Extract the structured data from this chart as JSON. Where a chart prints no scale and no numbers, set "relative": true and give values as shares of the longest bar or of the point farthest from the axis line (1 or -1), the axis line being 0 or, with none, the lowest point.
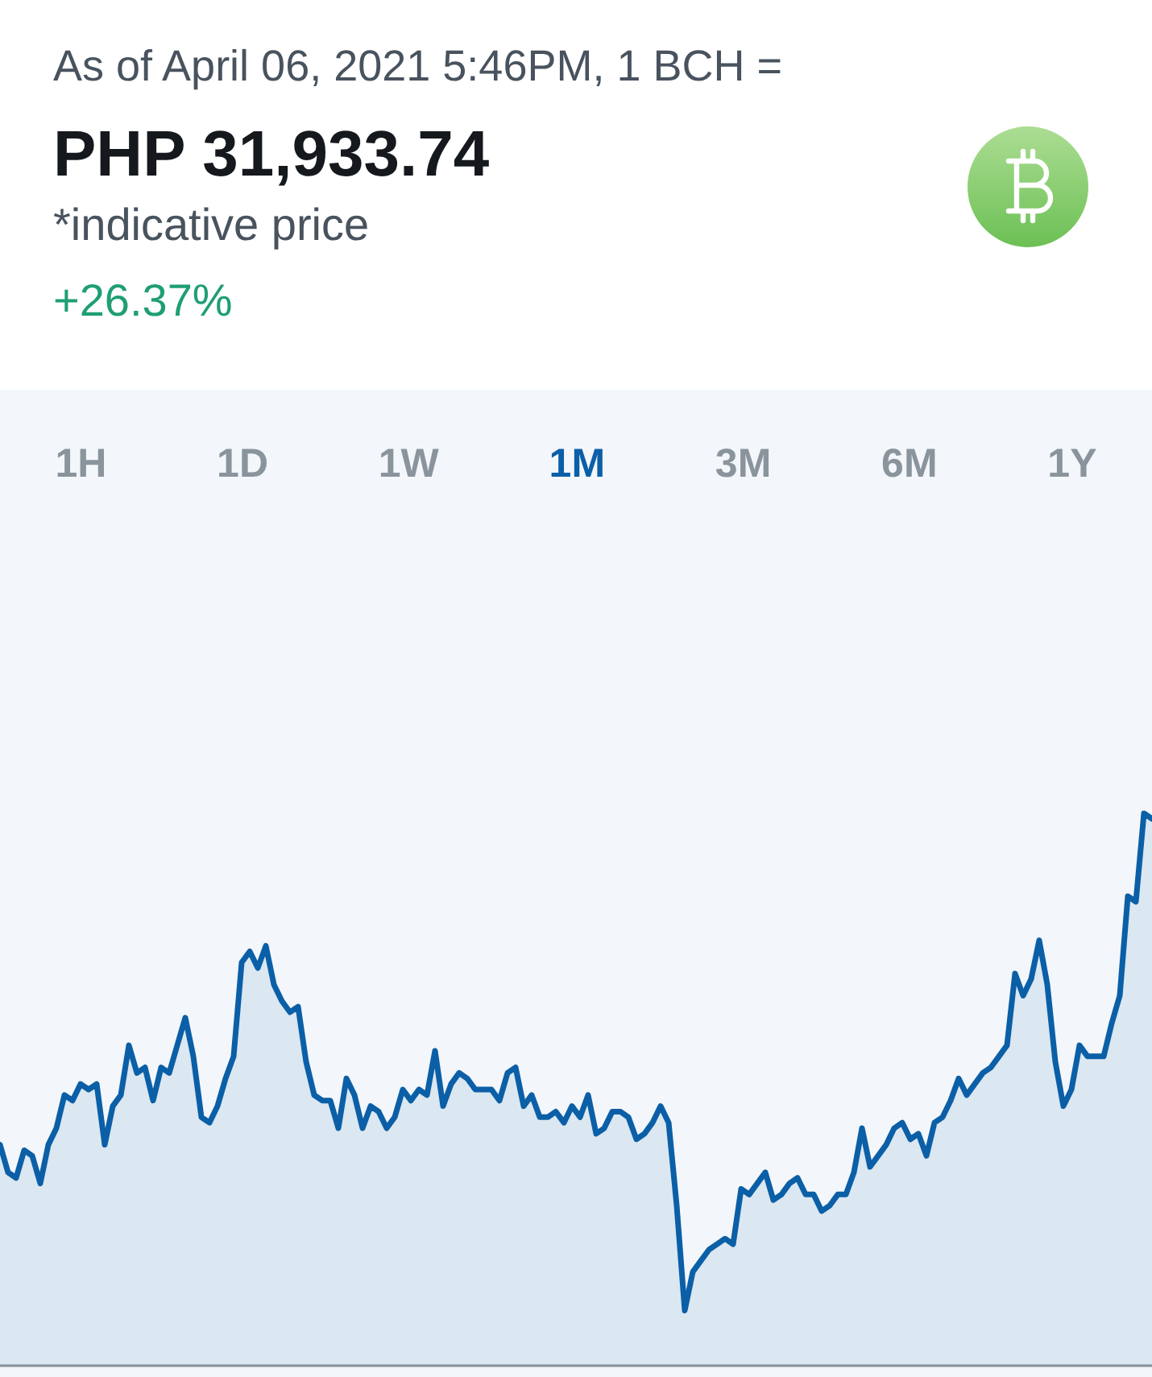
{
  "chart_data": {
    "type": "area",
    "subtitle": "As of April 06, 2021 5:46PM, 1 BCH =",
    "title": "PHP 31,933.74",
    "annotations": [
      "*indicative price",
      "+26.37%",
      "1H",
      "1D",
      "1W",
      "1M",
      "3M",
      "6M",
      "1Y"
    ],
    "relative": true,
    "marker": "none",
    "line_style": "solid",
    "categories": [
      null,
      null,
      null,
      null,
      null,
      null,
      null,
      null,
      null,
      null,
      null,
      null,
      null,
      null,
      null,
      null,
      null,
      null,
      null,
      null,
      null,
      null,
      null,
      null,
      null,
      null,
      null,
      null,
      null,
      null,
      null,
      null,
      null,
      null,
      null,
      null,
      null,
      null,
      null,
      null,
      null,
      null,
      null,
      null,
      null,
      null,
      null,
      null,
      null,
      null,
      null,
      null,
      null,
      null,
      null,
      null,
      null,
      null,
      null,
      null,
      null,
      null,
      null,
      null,
      null,
      null,
      null,
      null,
      null,
      null,
      null,
      null,
      null,
      null,
      null,
      null,
      null,
      null,
      null,
      null,
      null,
      null,
      null,
      null,
      null,
      null,
      null,
      null,
      null,
      null,
      null,
      null,
      null,
      null,
      null,
      null,
      null,
      null,
      null,
      null,
      null,
      null,
      null,
      null,
      null,
      null,
      null,
      null,
      null,
      null,
      null,
      null,
      null,
      null,
      null,
      null,
      null,
      null,
      null,
      null,
      null,
      null,
      null,
      null,
      null,
      null,
      null,
      null,
      null,
      null,
      null,
      null,
      null,
      null,
      null,
      null,
      null,
      null,
      null,
      null,
      null,
      null,
      null,
      null
    ],
    "series": [
      {
        "color": "#0b5fa7",
        "values": [
          0.4,
          0.35,
          0.34,
          0.39,
          0.38,
          0.33,
          0.4,
          0.43,
          0.49,
          0.48,
          0.51,
          0.5,
          0.51,
          0.4,
          0.47,
          0.49,
          0.58,
          0.53,
          0.54,
          0.48,
          0.54,
          0.53,
          0.58,
          0.63,
          0.56,
          0.45,
          0.44,
          0.47,
          0.52,
          0.56,
          0.73,
          0.75,
          0.72,
          0.76,
          0.69,
          0.66,
          0.64,
          0.65,
          0.55,
          0.49,
          0.48,
          0.48,
          0.43,
          0.52,
          0.49,
          0.43,
          0.47,
          0.46,
          0.43,
          0.45,
          0.5,
          0.48,
          0.5,
          0.49,
          0.57,
          0.47,
          0.51,
          0.53,
          0.52,
          0.5,
          0.5,
          0.5,
          0.48,
          0.53,
          0.54,
          0.47,
          0.49,
          0.45,
          0.45,
          0.46,
          0.44,
          0.47,
          0.45,
          0.49,
          0.42,
          0.43,
          0.46,
          0.46,
          0.45,
          0.41,
          0.42,
          0.44,
          0.47,
          0.44,
          0.29,
          0.1,
          0.17,
          0.19,
          0.21,
          0.22,
          0.23,
          0.22,
          0.32,
          0.31,
          0.33,
          0.35,
          0.3,
          0.31,
          0.33,
          0.34,
          0.31,
          0.31,
          0.28,
          0.29,
          0.31,
          0.31,
          0.35,
          0.43,
          0.36,
          0.38,
          0.4,
          0.43,
          0.44,
          0.41,
          0.42,
          0.38,
          0.44,
          0.45,
          0.48,
          0.52,
          0.49,
          0.51,
          0.53,
          0.54,
          0.56,
          0.58,
          0.71,
          0.67,
          0.7,
          0.77,
          0.69,
          0.55,
          0.47,
          0.5,
          0.58,
          0.56,
          0.56,
          0.56,
          0.62,
          0.67,
          0.85,
          0.84,
          1.0,
          0.99
        ]
      }
    ]
  }
}
